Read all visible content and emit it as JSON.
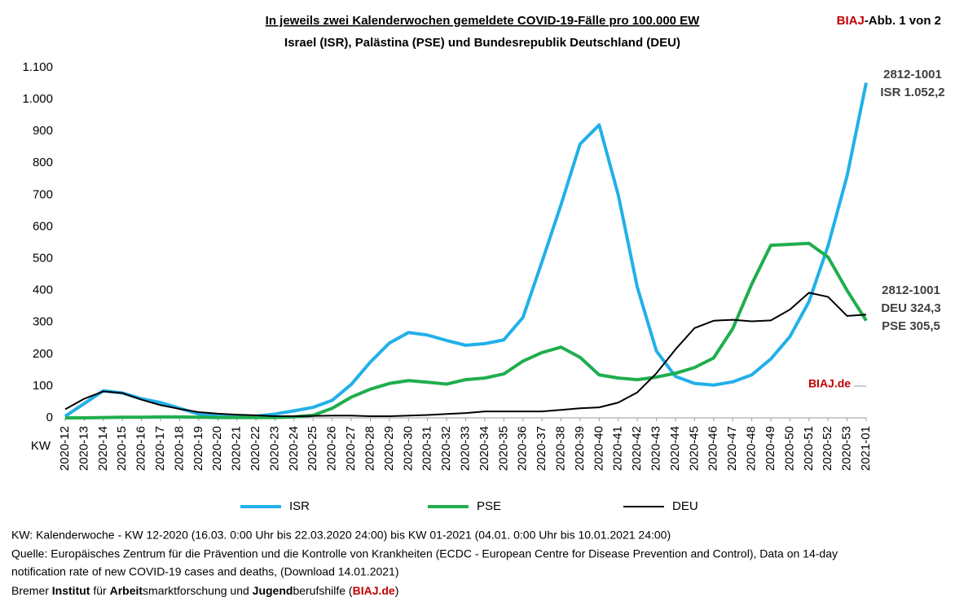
{
  "chart_data": {
    "type": "line",
    "title": "In jeweils zwei Kalenderwochen gemeldete COVID-19-Fälle pro 100.000 EW",
    "subtitle": "Israel (ISR), Palästina (PSE) und Bundesrepublik Deutschland (DEU)",
    "corner": [
      "BIAJ",
      "-Abb. 1 von 2"
    ],
    "xlabel": "KW",
    "categories": [
      "2020-12",
      "2020-13",
      "2020-14",
      "2020-15",
      "2020-16",
      "2020-17",
      "2020-18",
      "2020-19",
      "2020-20",
      "2020-21",
      "2020-22",
      "2020-23",
      "2020-24",
      "2020-25",
      "2020-26",
      "2020-27",
      "2020-28",
      "2020-29",
      "2020-30",
      "2020-31",
      "2020-32",
      "2020-33",
      "2020-34",
      "2020-35",
      "2020-36",
      "2020-37",
      "2020-38",
      "2020-39",
      "2020-40",
      "2020-41",
      "2020-42",
      "2020-43",
      "2020-44",
      "2020-45",
      "2020-46",
      "2020-47",
      "2020-48",
      "2020-49",
      "2020-50",
      "2020-51",
      "2020-52",
      "2020-53",
      "2021-01"
    ],
    "series": [
      {
        "name": "ISR",
        "color": "#22b0e8",
        "width": 4,
        "values": [
          5,
          45,
          85,
          78,
          60,
          48,
          30,
          12,
          5,
          3,
          5,
          12,
          22,
          33,
          55,
          105,
          175,
          235,
          268,
          260,
          243,
          228,
          233,
          245,
          315,
          490,
          670,
          860,
          920,
          700,
          410,
          210,
          130,
          108,
          103,
          113,
          135,
          185,
          255,
          365,
          540,
          760,
          1052.2
        ]
      },
      {
        "name": "PSE",
        "color": "#1fae4e",
        "width": 4,
        "values": [
          0,
          0,
          1,
          2,
          2,
          3,
          3,
          2,
          1,
          1,
          1,
          1,
          3,
          8,
          30,
          65,
          90,
          108,
          117,
          112,
          106,
          120,
          125,
          138,
          178,
          205,
          222,
          190,
          135,
          125,
          120,
          128,
          140,
          158,
          188,
          280,
          420,
          542,
          545,
          548,
          505,
          400,
          305.5
        ]
      },
      {
        "name": "DEU",
        "color": "#000000",
        "width": 2,
        "values": [
          27,
          60,
          83,
          78,
          57,
          40,
          28,
          18,
          13,
          10,
          8,
          5,
          5,
          6,
          7,
          7,
          5,
          5,
          7,
          9,
          12,
          15,
          20,
          20,
          20,
          20,
          25,
          30,
          33,
          48,
          80,
          140,
          215,
          282,
          305,
          308,
          303,
          306,
          340,
          393,
          380,
          320,
          324.3
        ]
      }
    ],
    "ylim": [
      0,
      1100
    ],
    "yticks": [
      0,
      100,
      200,
      300,
      400,
      500,
      600,
      700,
      800,
      900,
      {
        "value": 1000,
        "label": "1.000"
      },
      {
        "value": 1100,
        "label": "1.100"
      }
    ],
    "grid": false,
    "annotations": [
      [
        "2812-1001",
        "ISR 1.052,2"
      ],
      [
        "2812-1001",
        "DEU 324,3",
        "PSE 305,5"
      ]
    ],
    "watermark": "BIAJ.de"
  },
  "footer": [
    "KW: Kalenderwoche - KW 12-2020 (16.03. 0:00 Uhr bis 22.03.2020 24:00) bis KW 01-2021 (04.01. 0:00 Uhr bis 10.01.2021 24:00)",
    "Quelle: Europäisches Zentrum für die Prävention und die Kontrolle von Krankheiten (ECDC - European Centre for Disease Prevention and Control), Data on 14-day",
    "notification rate of new COVID-19 cases and deaths, (Download 14.01.2021)",
    [
      "Bremer ",
      "Institut",
      " für ",
      "Arbeit",
      "smarktforschung und ",
      "Jugend",
      "berufshilfe (",
      "BIAJ.de",
      ")"
    ]
  ]
}
